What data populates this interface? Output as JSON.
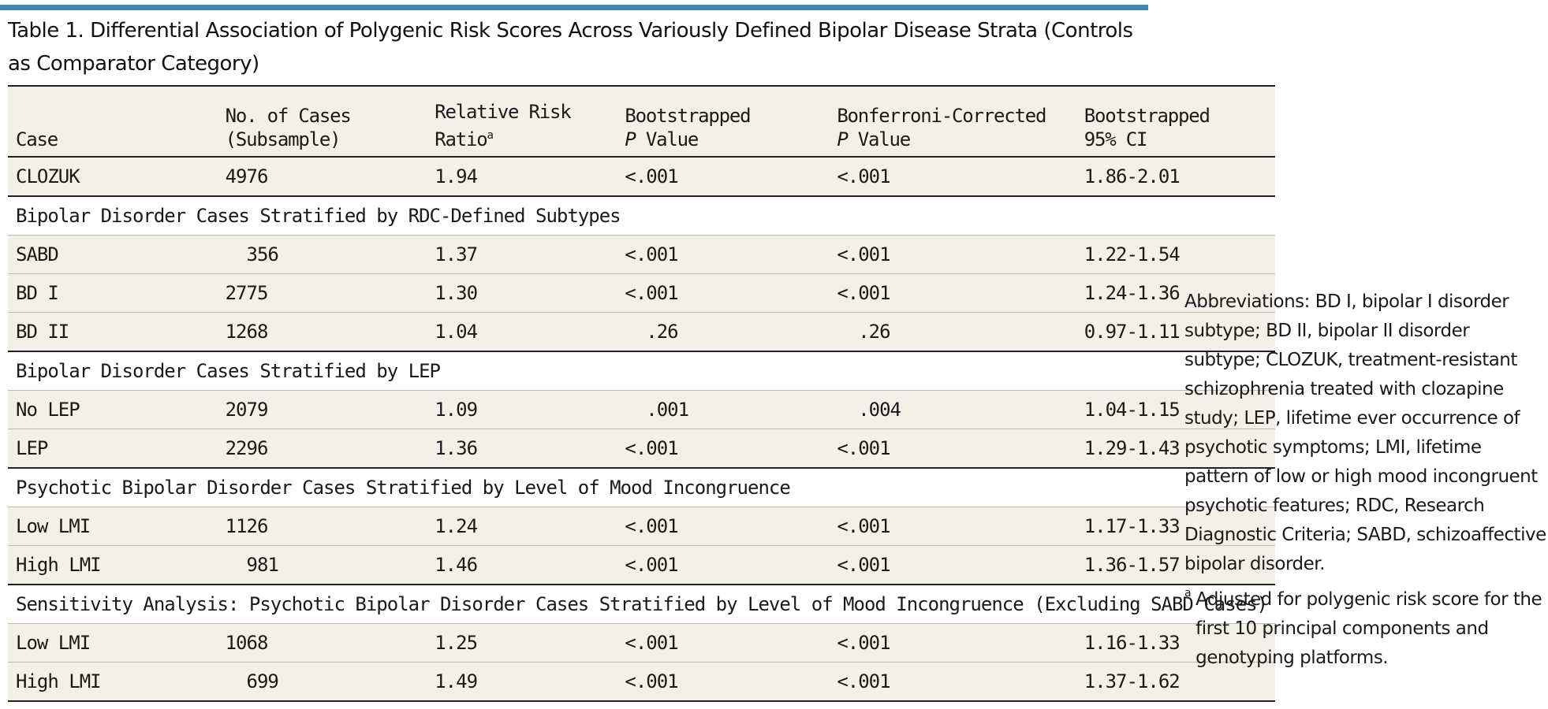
{
  "title": "Table 1. Differential Association of Polygenic Risk Scores Across Variously Defined Bipolar Disease Strata (Controls as Comparator Category)",
  "header": {
    "case": "Case",
    "cases_l1": "No. of Cases",
    "cases_l2": "(Subsample)",
    "rrr_l1": "Relative Risk",
    "rrr_l2": "Ratio",
    "rrr_sup": "a",
    "bp_l1": "Bootstrapped",
    "bp_l2_i": "P",
    "bp_l2": " Value",
    "bc_l1": "Bonferroni-Corrected",
    "bc_l2_i": "P",
    "bc_l2": " Value",
    "ci_l1": "Bootstrapped",
    "ci_l2": "95% CI"
  },
  "rows": {
    "r0": [
      "CLOZUK",
      "4976",
      "1.94",
      "<.001",
      "<.001",
      "1.86-2.01"
    ],
    "s1": "Bipolar Disorder Cases Stratified by RDC-Defined Subtypes",
    "r1": [
      "SABD",
      "  356",
      "1.37",
      "<.001",
      "<.001",
      "1.22-1.54"
    ],
    "r2": [
      "BD I",
      "2775",
      "1.30",
      "<.001",
      "<.001",
      "1.24-1.36"
    ],
    "r3": [
      "BD II",
      "1268",
      "1.04",
      "  .26",
      "  .26",
      "0.97-1.11"
    ],
    "s2": "Bipolar Disorder Cases Stratified by LEP",
    "r4": [
      "No LEP",
      "2079",
      "1.09",
      "  .001",
      "  .004",
      "1.04-1.15"
    ],
    "r5": [
      "LEP",
      "2296",
      "1.36",
      "<.001",
      "<.001",
      "1.29-1.43"
    ],
    "s3": "Psychotic Bipolar Disorder Cases Stratified by Level of Mood Incongruence",
    "r6": [
      "Low LMI",
      "1126",
      "1.24",
      "<.001",
      "<.001",
      "1.17-1.33"
    ],
    "r7": [
      "High LMI",
      "  981",
      "1.46",
      "<.001",
      "<.001",
      "1.36-1.57"
    ],
    "s4": "Sensitivity Analysis: Psychotic Bipolar Disorder Cases Stratified by Level of Mood Incongruence (Excluding SABD Cases)",
    "r8": [
      "Low LMI",
      "1068",
      "1.25",
      "<.001",
      "<.001",
      "1.16-1.33"
    ],
    "r9": [
      "High LMI",
      "  699",
      "1.49",
      "<.001",
      "<.001",
      "1.37-1.62"
    ]
  },
  "notes": {
    "abbreviations": "Abbreviations: BD I, bipolar I disorder subtype; BD II, bipolar II disorder subtype; CLOZUK, treatment-resistant schizophrenia treated with clozapine study; LEP, lifetime ever occurrence of psychotic symptoms; LMI, lifetime pattern of low or high mood incongruent psychotic features; RDC, Research Diagnostic Criteria; SABD, schizoaffective bipolar disorder.",
    "footnote_mark": "a",
    "footnote": "Adjusted for polygenic risk score for the first 10 principal components and genotyping platforms."
  },
  "colors": {
    "accent_bar": "#3f87b5",
    "row_fill": "#f3f1e7",
    "rule": "#222222"
  }
}
